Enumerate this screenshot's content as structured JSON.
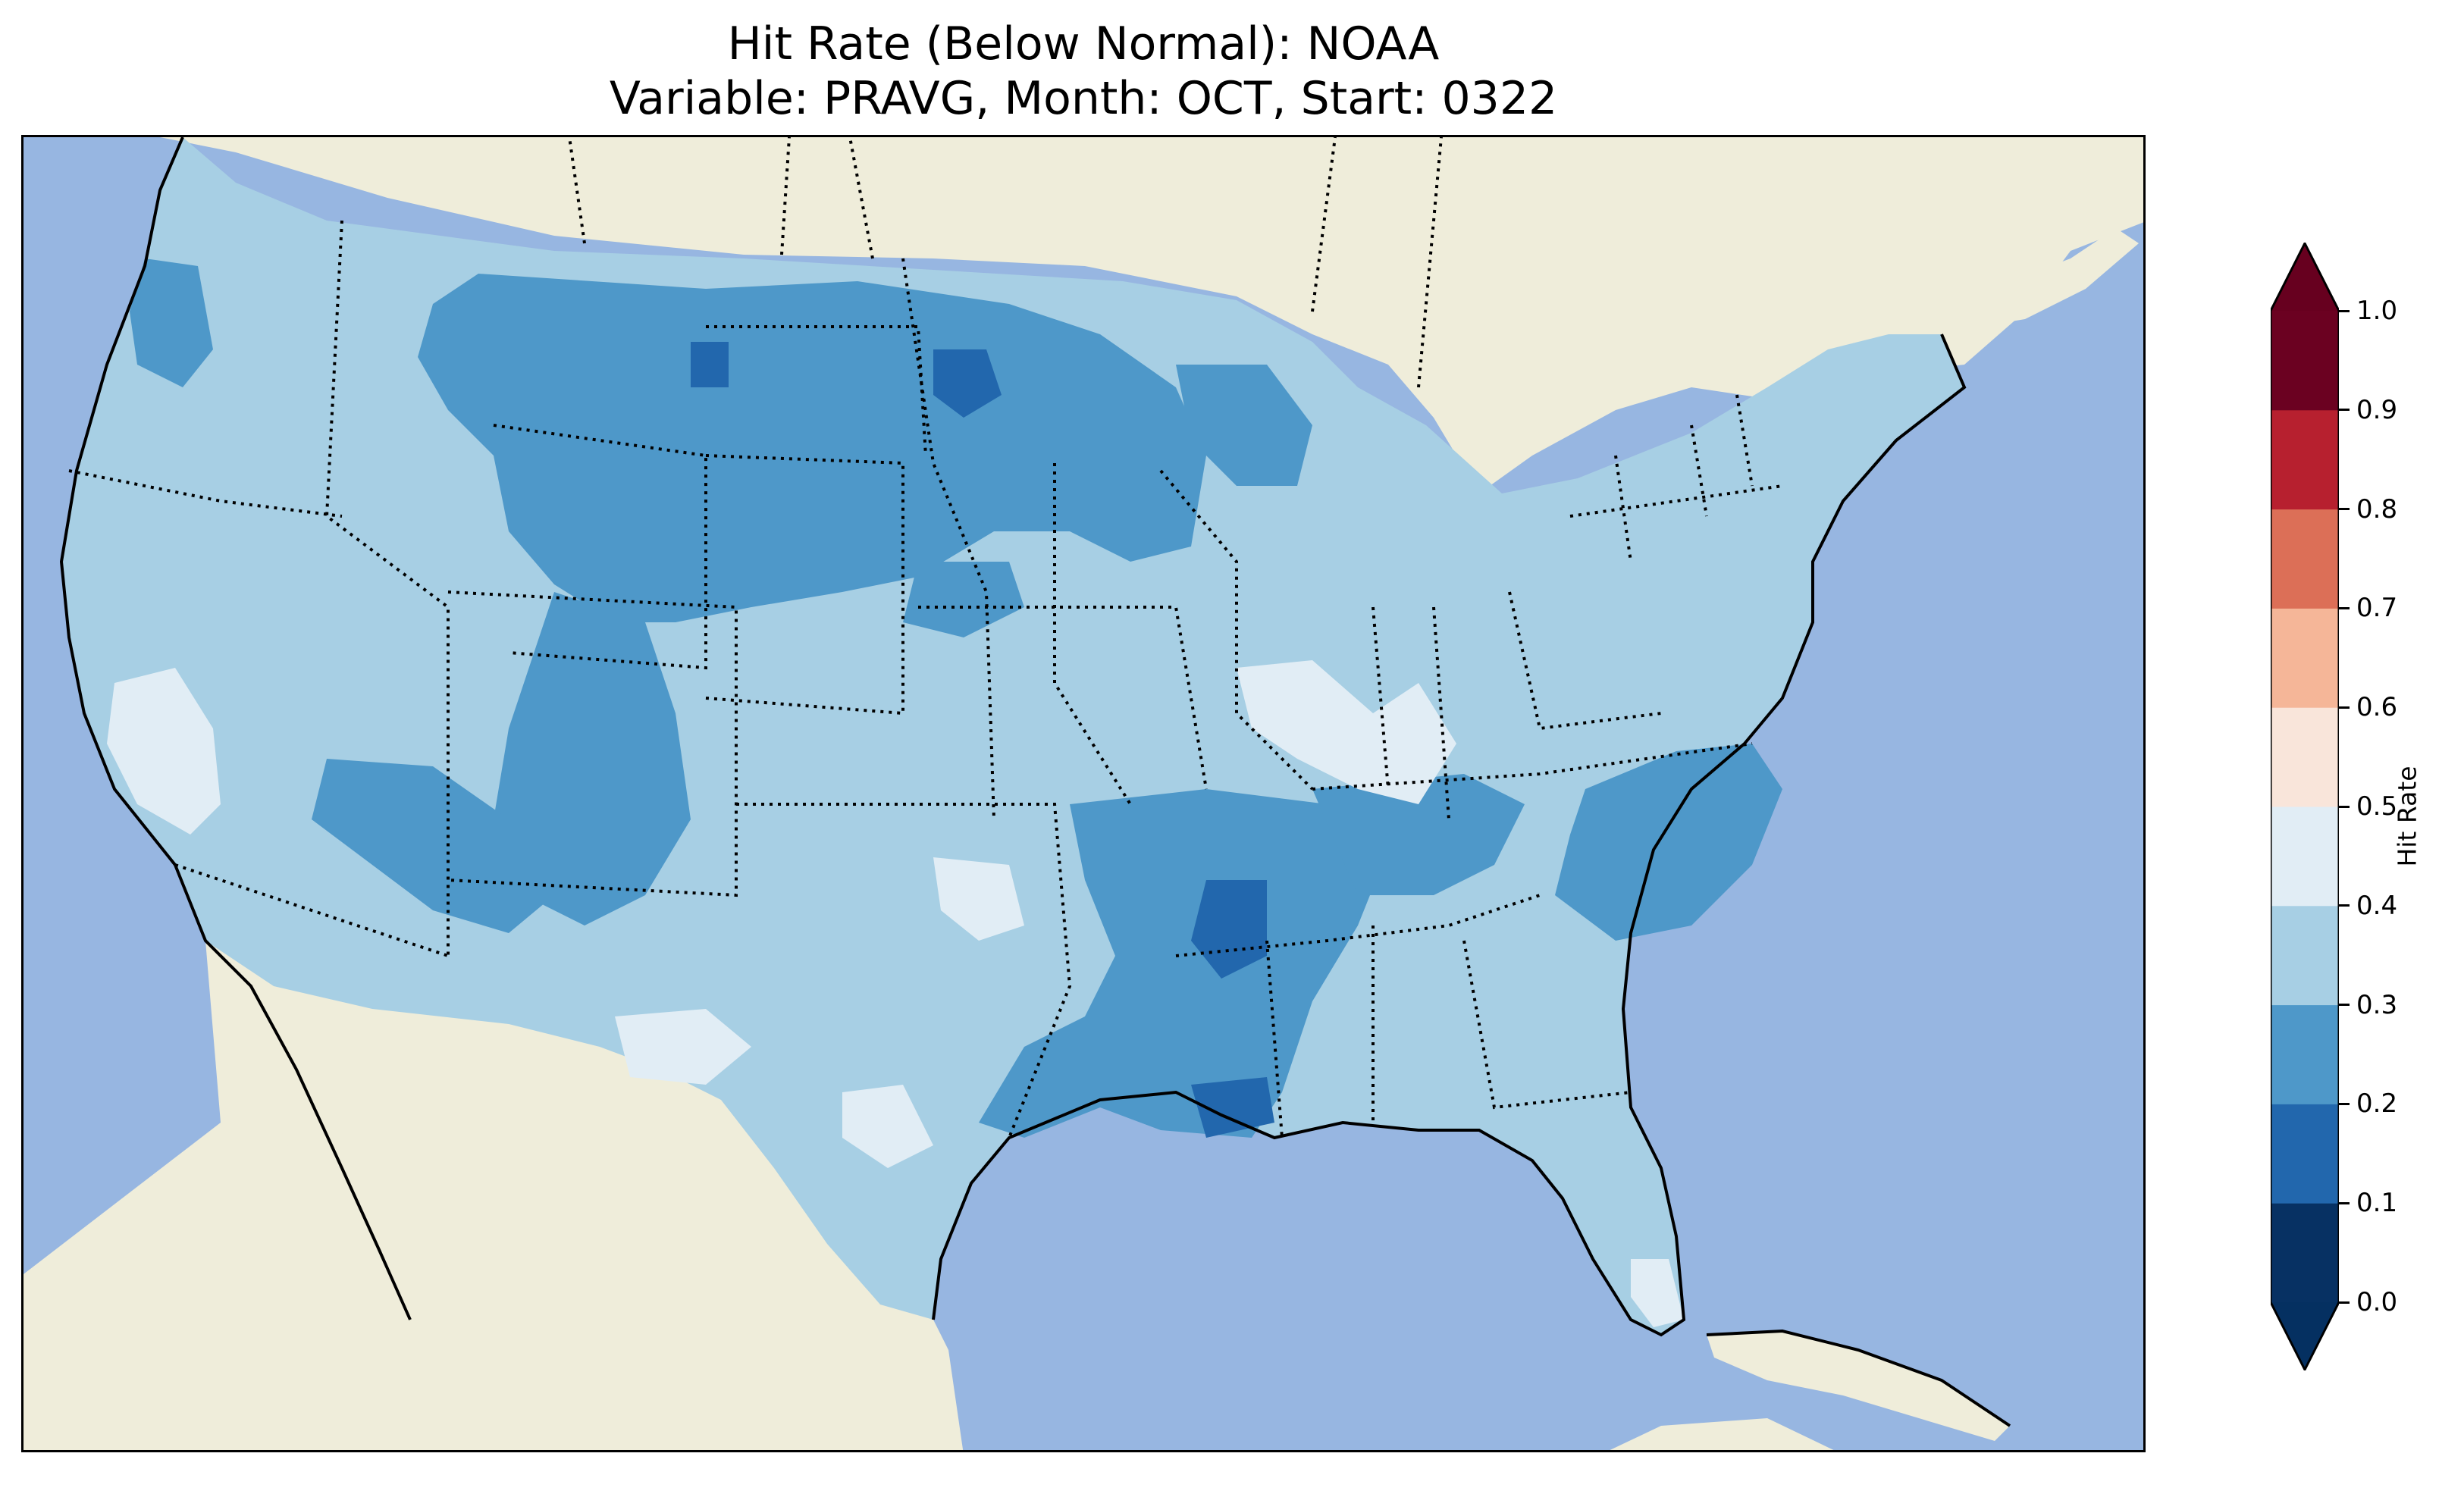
{
  "title": {
    "line1": "Hit Rate (Below Normal): NOAA",
    "line2": "Variable: PRAVG, Month: OCT, Start: 0322"
  },
  "colorbar": {
    "label": "Hit Rate",
    "ticks": [
      "0.0",
      "0.1",
      "0.2",
      "0.3",
      "0.4",
      "0.5",
      "0.6",
      "0.7",
      "0.8",
      "0.9",
      "1.0"
    ],
    "bins": [
      {
        "range": "0.0-0.1",
        "color": "#073163"
      },
      {
        "range": "0.1-0.2",
        "color": "#2267ad"
      },
      {
        "range": "0.2-0.3",
        "color": "#4e98c9"
      },
      {
        "range": "0.3-0.4",
        "color": "#a7cfe4"
      },
      {
        "range": "0.4-0.5",
        "color": "#e1edf5"
      },
      {
        "range": "0.5-0.6",
        "color": "#f9e5da"
      },
      {
        "range": "0.6-0.7",
        "color": "#f5b698"
      },
      {
        "range": "0.7-0.8",
        "color": "#dc6f57"
      },
      {
        "range": "0.8-0.9",
        "color": "#b7202f"
      },
      {
        "range": "0.9-1.0",
        "color": "#6b0121"
      }
    ],
    "extend_low_color": "#053061",
    "extend_high_color": "#67001f"
  },
  "map": {
    "ocean_color": "#97b6e1",
    "land_color": "#efedda",
    "dominant_bin": "0.3-0.4",
    "regions": [
      {
        "area": "northern plains (Montana, Dakotas, Wyoming)",
        "bin": "0.2-0.3"
      },
      {
        "area": "eastern North Dakota",
        "bin": "0.1-0.2"
      },
      {
        "area": "lower Mississippi valley / Louisiana",
        "bin": "0.1-0.2"
      },
      {
        "area": "Gulf coast / Mississippi / Arkansas",
        "bin": "0.2-0.3"
      },
      {
        "area": "Carolinas",
        "bin": "0.2-0.3"
      },
      {
        "area": "Colorado Rockies / northern New Mexico",
        "bin": "0.2-0.3"
      },
      {
        "area": "central California",
        "bin": "0.4-0.5"
      },
      {
        "area": "Illinois / Indiana",
        "bin": "0.4-0.5"
      },
      {
        "area": "west Texas",
        "bin": "0.4-0.5"
      },
      {
        "area": "south Florida",
        "bin": "0.4-0.5"
      }
    ]
  }
}
